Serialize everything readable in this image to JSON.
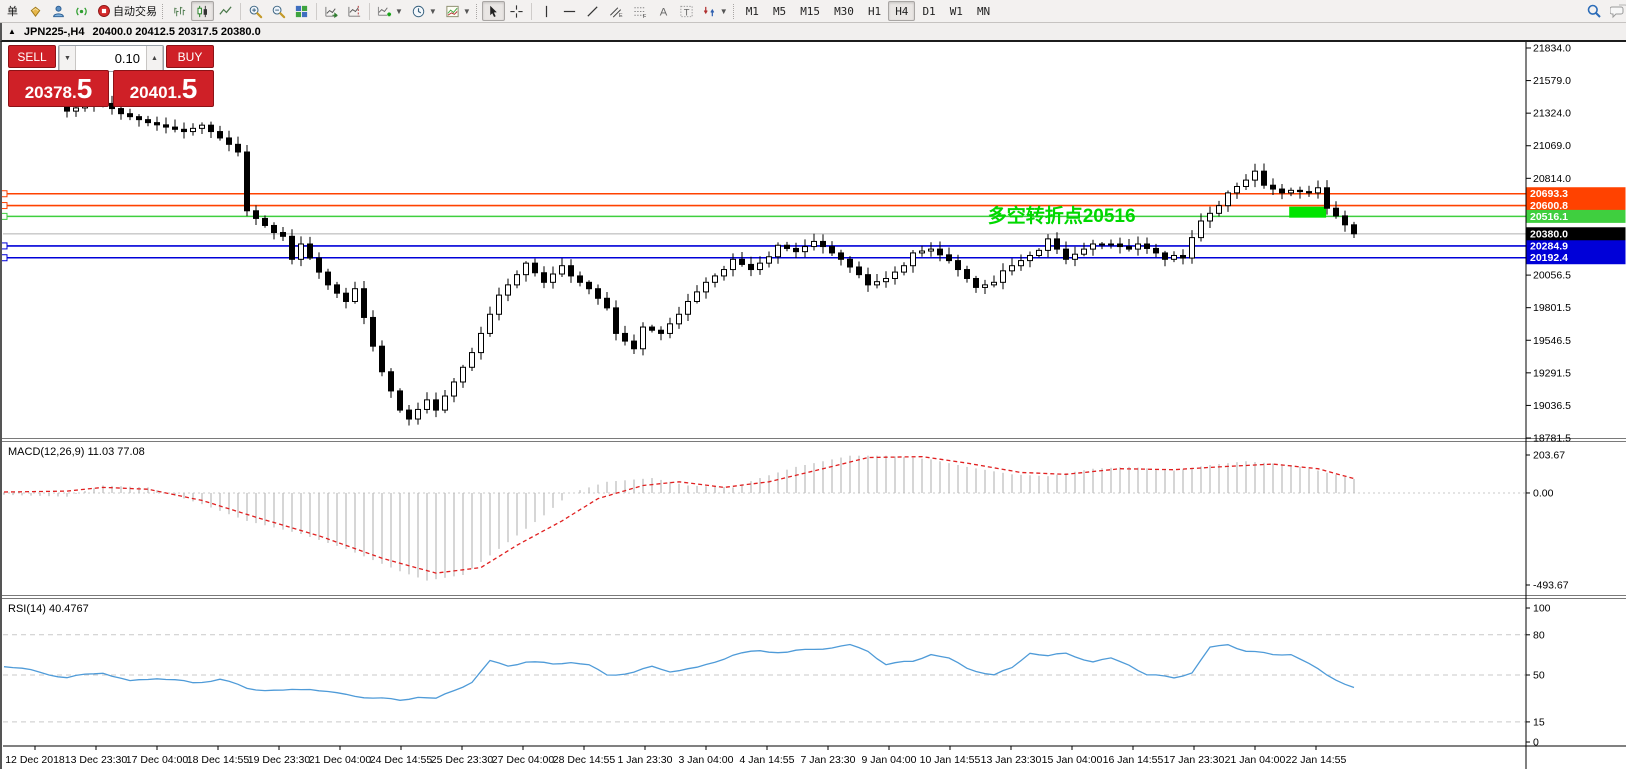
{
  "toolbar": {
    "new_order_label": "单",
    "autotrade_label": "自动交易",
    "timeframes": [
      "M1",
      "M5",
      "M15",
      "M30",
      "H1",
      "H4",
      "D1",
      "W1",
      "MN"
    ],
    "active_timeframe": "H4"
  },
  "chart_header": {
    "collapse_icon": "▲",
    "symbol_period": "JPN225-,H4",
    "ohlc": "20400.0 20412.5 20317.5 20380.0"
  },
  "trade_panel": {
    "sell_label": "SELL",
    "buy_label": "BUY",
    "volume": "0.10",
    "sell_price": {
      "int": "20378",
      "sep": ".",
      "frac": "5"
    },
    "buy_price": {
      "int": "20401",
      "sep": ".",
      "frac": "5"
    }
  },
  "indicators": {
    "macd_label": "MACD(12,26,9) 11.03 77.08",
    "rsi_label": "RSI(14) 40.4767"
  },
  "colors": {
    "panel_red": "#cf2027",
    "line_orange": "#ff4200",
    "line_green": "#3fcf3f",
    "line_blue": "#0000d8",
    "current_price_gray": "#c6c6c6",
    "current_tag_bg": "#000000",
    "annotation_green": "#00d800",
    "macd_hist": "#bababa",
    "macd_signal": "#e02020",
    "rsi_line": "#4f9bd8",
    "candle_up": "#ffffff",
    "candle_down": "#000000",
    "grid_dash": "#c9c9c9"
  },
  "chart_data": {
    "type": "candlestick",
    "symbol": "JPN225-",
    "period": "H4",
    "x_axis": {
      "labels": [
        "12 Dec 2018",
        "13 Dec 23:30",
        "17 Dec 04:00",
        "18 Dec 14:55",
        "19 Dec 23:30",
        "21 Dec 04:00",
        "24 Dec 14:55",
        "25 Dec 23:30",
        "27 Dec 04:00",
        "28 Dec 14:55",
        "1 Jan 23:30",
        "3 Jan 04:00",
        "4 Jan 14:55",
        "7 Jan 23:30",
        "9 Jan 04:00",
        "10 Jan 14:55",
        "13 Jan 23:30",
        "15 Jan 04:00",
        "16 Jan 14:55",
        "17 Jan 23:30",
        "21 Jan 04:00",
        "22 Jan 14:55"
      ]
    },
    "price_panel": {
      "ylim": [
        18781.5,
        21834.0
      ],
      "axis_ticks": [
        "21834.0",
        "21579.0",
        "21324.0",
        "21069.0",
        "20814.0",
        "20056.5",
        "19801.5",
        "19546.5",
        "19291.5",
        "19036.5",
        "18781.5"
      ],
      "hlines": [
        {
          "price": 20693.3,
          "label": "20693.3",
          "color": "#ff4200"
        },
        {
          "price": 20600.8,
          "label": "20600.8",
          "color": "#ff4200"
        },
        {
          "price": 20516.1,
          "label": "20516.1",
          "color": "#3fcf3f"
        },
        {
          "price": 20284.9,
          "label": "20284.9",
          "color": "#0000d8"
        },
        {
          "price": 20192.4,
          "label": "20192.4",
          "color": "#0000d8"
        }
      ],
      "current_price": {
        "price": 20380.0,
        "label": "20380.0"
      },
      "annotations": {
        "text": {
          "string": "多空转折点20516",
          "bar": 102.3,
          "price": 20472,
          "color": "#00d800"
        },
        "box": {
          "bar_start": 135.8,
          "bar_end": 139.9,
          "price_top": 20592,
          "price_bottom": 20506,
          "color": "#00e400"
        }
      },
      "bars_visible": 144,
      "close_path": [
        [
          0,
          21340
        ],
        [
          2,
          21390
        ],
        [
          4,
          21400
        ],
        [
          6,
          21320
        ],
        [
          9,
          21250
        ],
        [
          13,
          21180
        ],
        [
          15,
          21230
        ],
        [
          18,
          21080
        ],
        [
          19,
          21020
        ],
        [
          20,
          20560
        ],
        [
          21,
          20500
        ],
        [
          23,
          20390
        ],
        [
          24,
          20360
        ],
        [
          25,
          20180
        ],
        [
          26,
          20300
        ],
        [
          28,
          20080
        ],
        [
          29,
          19980
        ],
        [
          31,
          19850
        ],
        [
          32,
          19950
        ],
        [
          34,
          19500
        ],
        [
          35,
          19300
        ],
        [
          37,
          19000
        ],
        [
          38,
          18930
        ],
        [
          40,
          19080
        ],
        [
          41,
          19000
        ],
        [
          43,
          19220
        ],
        [
          45,
          19450
        ],
        [
          47,
          19750
        ],
        [
          48,
          19900
        ],
        [
          50,
          20060
        ],
        [
          51,
          20150
        ],
        [
          53,
          20000
        ],
        [
          55,
          20130
        ],
        [
          56,
          20050
        ],
        [
          58,
          19950
        ],
        [
          60,
          19800
        ],
        [
          61,
          19600
        ],
        [
          63,
          19480
        ],
        [
          64,
          19650
        ],
        [
          66,
          19600
        ],
        [
          68,
          19750
        ],
        [
          69,
          19850
        ],
        [
          71,
          20000
        ],
        [
          73,
          20100
        ],
        [
          74,
          20180
        ],
        [
          76,
          20100
        ],
        [
          78,
          20200
        ],
        [
          79,
          20290
        ],
        [
          81,
          20240
        ],
        [
          83,
          20320
        ],
        [
          84,
          20280
        ],
        [
          86,
          20180
        ],
        [
          88,
          20060
        ],
        [
          89,
          19980
        ],
        [
          91,
          20030
        ],
        [
          93,
          20130
        ],
        [
          94,
          20230
        ],
        [
          96,
          20260
        ],
        [
          98,
          20170
        ],
        [
          99,
          20100
        ],
        [
          101,
          19960
        ],
        [
          103,
          20000
        ],
        [
          104,
          20090
        ],
        [
          106,
          20170
        ],
        [
          108,
          20250
        ],
        [
          109,
          20340
        ],
        [
          111,
          20180
        ],
        [
          113,
          20260
        ],
        [
          114,
          20300
        ],
        [
          116,
          20300
        ],
        [
          118,
          20260
        ],
        [
          119,
          20300
        ],
        [
          121,
          20230
        ],
        [
          122,
          20180
        ],
        [
          123,
          20210
        ],
        [
          124,
          20190
        ],
        [
          125,
          20350
        ],
        [
          126,
          20480
        ],
        [
          128,
          20600
        ],
        [
          129,
          20700
        ],
        [
          131,
          20800
        ],
        [
          132,
          20870
        ],
        [
          133,
          20760
        ],
        [
          135,
          20700
        ],
        [
          136,
          20720
        ],
        [
          138,
          20700
        ],
        [
          139,
          20740
        ],
        [
          140,
          20580
        ],
        [
          141,
          20520
        ],
        [
          142,
          20450
        ],
        [
          143,
          20380
        ]
      ]
    },
    "macd_panel": {
      "label": "MACD(12,26,9) 11.03 77.08",
      "macd_value": 11.03,
      "signal_value": 77.08,
      "ylim": [
        -493.67,
        203.67
      ],
      "axis_ticks": [
        "203.67",
        "0.00",
        "-493.67"
      ],
      "histogram_anchors": [
        [
          -7,
          -10
        ],
        [
          0,
          -20
        ],
        [
          4,
          40
        ],
        [
          9,
          30
        ],
        [
          15,
          -60
        ],
        [
          20,
          -150
        ],
        [
          26,
          -220
        ],
        [
          31,
          -300
        ],
        [
          37,
          -420
        ],
        [
          40,
          -470
        ],
        [
          44,
          -440
        ],
        [
          48,
          -300
        ],
        [
          53,
          -120
        ],
        [
          56,
          0
        ],
        [
          60,
          60
        ],
        [
          65,
          80
        ],
        [
          69,
          40
        ],
        [
          74,
          30
        ],
        [
          77,
          80
        ],
        [
          81,
          140
        ],
        [
          87,
          200
        ],
        [
          91,
          200
        ],
        [
          96,
          180
        ],
        [
          100,
          140
        ],
        [
          105,
          100
        ],
        [
          109,
          90
        ],
        [
          114,
          130
        ],
        [
          118,
          140
        ],
        [
          123,
          120
        ],
        [
          127,
          150
        ],
        [
          131,
          170
        ],
        [
          136,
          150
        ],
        [
          139,
          120
        ],
        [
          143,
          75
        ]
      ],
      "signal_anchors": [
        [
          -7,
          5
        ],
        [
          0,
          10
        ],
        [
          4,
          30
        ],
        [
          9,
          20
        ],
        [
          15,
          -40
        ],
        [
          21,
          -130
        ],
        [
          28,
          -230
        ],
        [
          35,
          -350
        ],
        [
          41,
          -430
        ],
        [
          46,
          -400
        ],
        [
          50,
          -280
        ],
        [
          55,
          -150
        ],
        [
          59,
          -30
        ],
        [
          64,
          40
        ],
        [
          68,
          60
        ],
        [
          73,
          30
        ],
        [
          78,
          60
        ],
        [
          84,
          130
        ],
        [
          89,
          190
        ],
        [
          95,
          195
        ],
        [
          100,
          160
        ],
        [
          106,
          110
        ],
        [
          111,
          100
        ],
        [
          117,
          130
        ],
        [
          123,
          125
        ],
        [
          128,
          140
        ],
        [
          134,
          155
        ],
        [
          139,
          130
        ],
        [
          143,
          77
        ]
      ]
    },
    "rsi_panel": {
      "label": "RSI(14) 40.4767",
      "value": 40.4767,
      "ylim": [
        0,
        100
      ],
      "axis_ticks": [
        "100",
        "80",
        "50",
        "15",
        "0"
      ],
      "levels": [
        80,
        50,
        15
      ],
      "line_anchors": [
        [
          -7,
          57
        ],
        [
          -3,
          52
        ],
        [
          0,
          48
        ],
        [
          4,
          52
        ],
        [
          7,
          45
        ],
        [
          10,
          48
        ],
        [
          14,
          44
        ],
        [
          17,
          47
        ],
        [
          20,
          40
        ],
        [
          24,
          38
        ],
        [
          27,
          40
        ],
        [
          30,
          36
        ],
        [
          34,
          33
        ],
        [
          37,
          31
        ],
        [
          39,
          34
        ],
        [
          41,
          32
        ],
        [
          45,
          45
        ],
        [
          47,
          60
        ],
        [
          49,
          57
        ],
        [
          51,
          60
        ],
        [
          54,
          58
        ],
        [
          56,
          60
        ],
        [
          58,
          57
        ],
        [
          60,
          50
        ],
        [
          63,
          52
        ],
        [
          65,
          56
        ],
        [
          67,
          53
        ],
        [
          70,
          55
        ],
        [
          74,
          65
        ],
        [
          77,
          68
        ],
        [
          80,
          67
        ],
        [
          84,
          70
        ],
        [
          87,
          72
        ],
        [
          89,
          68
        ],
        [
          91,
          58
        ],
        [
          94,
          60
        ],
        [
          96,
          66
        ],
        [
          98,
          62
        ],
        [
          100,
          55
        ],
        [
          103,
          50
        ],
        [
          105,
          55
        ],
        [
          107,
          67
        ],
        [
          109,
          64
        ],
        [
          111,
          66
        ],
        [
          114,
          60
        ],
        [
          116,
          62
        ],
        [
          118,
          58
        ],
        [
          120,
          50
        ],
        [
          123,
          48
        ],
        [
          125,
          52
        ],
        [
          127,
          70
        ],
        [
          129,
          73
        ],
        [
          131,
          68
        ],
        [
          134,
          65
        ],
        [
          136,
          66
        ],
        [
          138,
          58
        ],
        [
          140,
          50
        ],
        [
          143,
          40.5
        ]
      ]
    }
  }
}
